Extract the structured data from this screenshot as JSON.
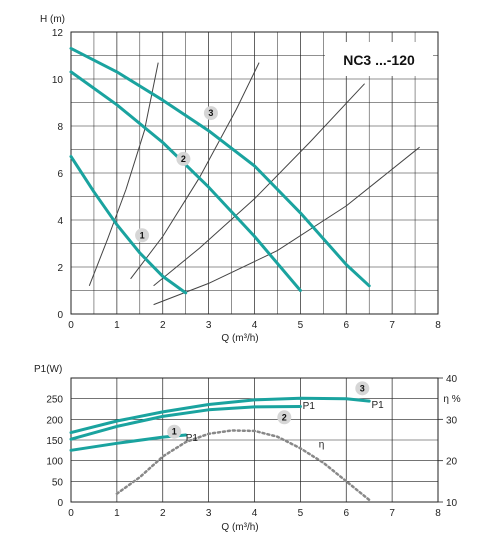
{
  "model": "NC3 ...-120",
  "colors": {
    "curve": "#1aa39f",
    "system": "#444444",
    "grid": "#222222",
    "eta": "#888888",
    "badge": "#d6d6d6"
  },
  "chart_data": [
    {
      "type": "line",
      "ylabel": "H (m)",
      "xlabel": "Q (m³/h)",
      "xlim": [
        0,
        8
      ],
      "ylim": [
        0,
        12
      ],
      "x_ticks": [
        "0",
        "1",
        "2",
        "3",
        "4",
        "5",
        "6",
        "7",
        "8"
      ],
      "y_ticks": [
        "0",
        "2",
        "4",
        "6",
        "8",
        "10",
        "12"
      ],
      "grid": true,
      "series": [
        {
          "name": "1",
          "points": [
            [
              0,
              6.7
            ],
            [
              0.5,
              5.2
            ],
            [
              1,
              3.8
            ],
            [
              1.5,
              2.6
            ],
            [
              2,
              1.6
            ],
            [
              2.5,
              0.9
            ]
          ]
        },
        {
          "name": "2",
          "points": [
            [
              0,
              10.3
            ],
            [
              1,
              8.9
            ],
            [
              2,
              7.3
            ],
            [
              3,
              5.4
            ],
            [
              4,
              3.3
            ],
            [
              5,
              1.0
            ]
          ]
        },
        {
          "name": "3",
          "points": [
            [
              0,
              11.3
            ],
            [
              1,
              10.3
            ],
            [
              2,
              9.1
            ],
            [
              3,
              7.8
            ],
            [
              4,
              6.3
            ],
            [
              5,
              4.3
            ],
            [
              6,
              2.1
            ],
            [
              6.5,
              1.2
            ]
          ]
        }
      ],
      "system_curves": [
        [
          [
            0.4,
            1.2
          ],
          [
            0.8,
            3.2
          ],
          [
            1.2,
            5.3
          ],
          [
            1.6,
            7.8
          ],
          [
            1.9,
            10.7
          ]
        ],
        [
          [
            1.3,
            1.5
          ],
          [
            2,
            3.3
          ],
          [
            2.8,
            5.8
          ],
          [
            3.6,
            8.7
          ],
          [
            4.1,
            10.7
          ]
        ],
        [
          [
            1.8,
            1.2
          ],
          [
            2.8,
            2.8
          ],
          [
            4,
            4.9
          ],
          [
            5.2,
            7.3
          ],
          [
            6.4,
            9.8
          ]
        ],
        [
          [
            1.8,
            0.4
          ],
          [
            3,
            1.3
          ],
          [
            4.5,
            2.7
          ],
          [
            6,
            4.6
          ],
          [
            7.6,
            7.1
          ]
        ]
      ]
    },
    {
      "type": "line",
      "ylabel": "P1(W)",
      "y2label": "η %",
      "xlabel": "Q (m³/h)",
      "xlim": [
        0,
        8
      ],
      "ylim": [
        0,
        300
      ],
      "y2lim": [
        10,
        40
      ],
      "x_ticks": [
        "0",
        "1",
        "2",
        "3",
        "4",
        "5",
        "6",
        "7",
        "8"
      ],
      "y_ticks": [
        "0",
        "50",
        "100",
        "150",
        "200",
        "250"
      ],
      "y2_ticks": [
        "10",
        "20",
        "30",
        "40"
      ],
      "grid": true,
      "series": [
        {
          "name": "1",
          "label": "P1",
          "points": [
            [
              0,
              125
            ],
            [
              1,
              142
            ],
            [
              2,
              157
            ],
            [
              2.5,
              162
            ]
          ]
        },
        {
          "name": "2",
          "label": "P1",
          "points": [
            [
              0,
              152
            ],
            [
              1,
              183
            ],
            [
              2,
              207
            ],
            [
              3,
              223
            ],
            [
              4,
              230
            ],
            [
              5,
              231
            ]
          ]
        },
        {
          "name": "3",
          "label": "P1",
          "points": [
            [
              0,
              168
            ],
            [
              1,
              196
            ],
            [
              2,
              218
            ],
            [
              3,
              236
            ],
            [
              4,
              247
            ],
            [
              5,
              251
            ],
            [
              6,
              250
            ],
            [
              6.5,
              244
            ]
          ]
        }
      ],
      "efficiency": {
        "label": "η",
        "points": [
          [
            1,
            12
          ],
          [
            1.5,
            16
          ],
          [
            2,
            21
          ],
          [
            2.5,
            24.5
          ],
          [
            3,
            26.5
          ],
          [
            3.5,
            27.3
          ],
          [
            4,
            27.2
          ],
          [
            4.5,
            25.8
          ],
          [
            5,
            23
          ],
          [
            5.5,
            19.5
          ],
          [
            6,
            15
          ],
          [
            6.5,
            10.5
          ]
        ]
      }
    }
  ]
}
